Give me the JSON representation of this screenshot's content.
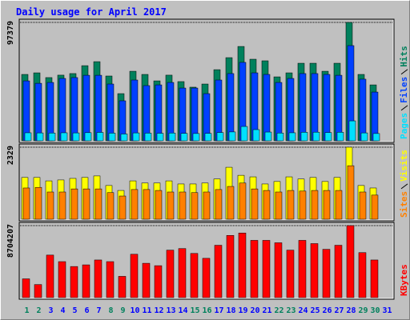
{
  "title": "Daily usage for April 2017",
  "chart_data": [
    {
      "type": "bar",
      "series": [
        {
          "name": "Hits",
          "color": "#00805c",
          "values": [
            54600,
            55900,
            52000,
            54000,
            55300,
            61800,
            65100,
            53300,
            38800,
            57200,
            54600,
            49300,
            54000,
            48700,
            44100,
            46700,
            58500,
            68400,
            77600,
            67100,
            65800,
            52600,
            55900,
            63800,
            63800,
            57200,
            63800,
            97379,
            54600,
            46000,
            0
          ]
        },
        {
          "name": "Files",
          "color": "#0040ff",
          "values": [
            49300,
            47300,
            48000,
            51300,
            52000,
            53900,
            53900,
            46700,
            32900,
            50000,
            45400,
            46000,
            48000,
            43400,
            43400,
            38800,
            50000,
            55300,
            64500,
            55900,
            54600,
            48000,
            51300,
            55300,
            55300,
            54600,
            53900,
            78300,
            50700,
            40100,
            0
          ]
        },
        {
          "name": "Pages",
          "color": "#00e0ff",
          "values": [
            6600,
            6500,
            6400,
            6600,
            6500,
            6700,
            6900,
            6300,
            5600,
            6500,
            6300,
            6200,
            6400,
            6100,
            6000,
            6100,
            6800,
            7300,
            11800,
            9200,
            7200,
            6400,
            6600,
            7000,
            7100,
            6800,
            7000,
            16400,
            6500,
            6000,
            0
          ]
        }
      ],
      "ylim": [
        0,
        97379
      ],
      "yticks": [
        97379
      ]
    },
    {
      "type": "bar",
      "series": [
        {
          "name": "Visits",
          "color": "#ffff00",
          "values": [
            1350,
            1350,
            1240,
            1270,
            1320,
            1350,
            1400,
            1090,
            930,
            1240,
            1170,
            1170,
            1240,
            1140,
            1140,
            1170,
            1300,
            1680,
            1420,
            1370,
            1140,
            1220,
            1370,
            1300,
            1350,
            1220,
            1350,
            2329,
            1090,
            1010,
            0
          ]
        },
        {
          "name": "Sites",
          "color": "#ff8000",
          "values": [
            1010,
            1030,
            880,
            880,
            980,
            980,
            980,
            860,
            750,
            960,
            960,
            930,
            880,
            880,
            860,
            880,
            960,
            1060,
            1170,
            980,
            930,
            880,
            930,
            910,
            930,
            930,
            930,
            1730,
            880,
            780,
            0
          ]
        }
      ],
      "ylim": [
        0,
        2329
      ],
      "yticks": [
        2329
      ]
    },
    {
      "type": "bar",
      "categories": [
        "1",
        "2",
        "3",
        "4",
        "5",
        "6",
        "7",
        "8",
        "9",
        "10",
        "11",
        "12",
        "13",
        "14",
        "15",
        "16",
        "17",
        "18",
        "19",
        "20",
        "21",
        "22",
        "23",
        "24",
        "25",
        "26",
        "27",
        "28",
        "29",
        "30",
        "31"
      ],
      "category_colors": [
        "#00805c",
        "#00805c",
        "#0000ff",
        "#0000ff",
        "#0000ff",
        "#0000ff",
        "#0000ff",
        "#00805c",
        "#00805c",
        "#0000ff",
        "#0000ff",
        "#0000ff",
        "#0000ff",
        "#0000ff",
        "#00805c",
        "#00805c",
        "#0000ff",
        "#0000ff",
        "#0000ff",
        "#0000ff",
        "#0000ff",
        "#00805c",
        "#00805c",
        "#0000ff",
        "#0000ff",
        "#0000ff",
        "#0000ff",
        "#0000ff",
        "#00805c",
        "#00805c",
        "#0000ff"
      ],
      "series": [
        {
          "name": "KBytes",
          "color": "#ff0000",
          "values": [
            2270000,
            1580000,
            5140000,
            4350000,
            3760000,
            3960000,
            4550000,
            4350000,
            2570000,
            5240000,
            4150000,
            3860000,
            5740000,
            5930000,
            5340000,
            4750000,
            6330000,
            7520000,
            7810000,
            6920000,
            6920000,
            6630000,
            5740000,
            6920000,
            6530000,
            5840000,
            6330000,
            8704207,
            5440000,
            4550000,
            0
          ]
        }
      ],
      "ylim": [
        0,
        8704207
      ],
      "yticks": [
        8704207
      ]
    }
  ]
}
